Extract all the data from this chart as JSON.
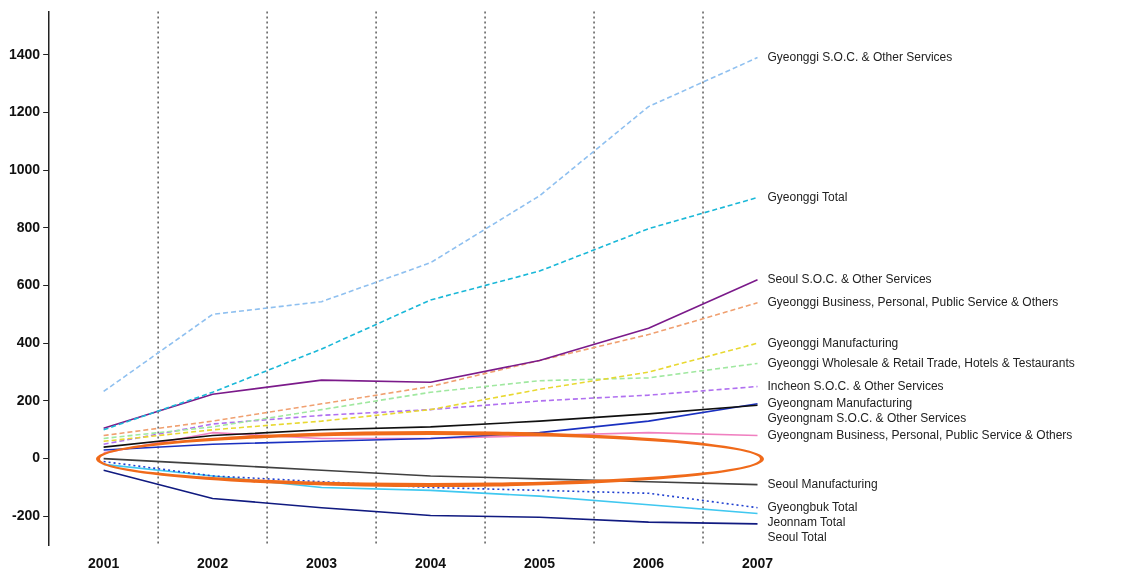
{
  "chart_data": {
    "type": "line",
    "categories": [
      "2001",
      "2002",
      "2003",
      "2004",
      "2005",
      "2006",
      "2007"
    ],
    "ylim": [
      -300,
      1550
    ],
    "yticks": [
      -200,
      0,
      200,
      400,
      600,
      800,
      1000,
      1200,
      1400
    ],
    "grid": "x",
    "legend": false,
    "marker": "none",
    "series": [
      {
        "name": "Gyeonggi S.O.C. & Other Services",
        "color": "#8fc0f0",
        "line_style": "dashed",
        "values": [
          233,
          500,
          544,
          679,
          911,
          1220,
          1390
        ]
      },
      {
        "name": "Gyeonggi Total",
        "color": "#1ab8d8",
        "line_style": "dashed",
        "values": [
          100,
          230,
          380,
          550,
          650,
          797,
          905
        ]
      },
      {
        "name": "Seoul S.O.C. & Other Services",
        "color": "#7b1a8a",
        "line_style": "solid",
        "values": [
          105,
          223,
          272,
          265,
          340,
          452,
          620
        ]
      },
      {
        "name": "Gyeonggi Business, Personal, Public Service & Others",
        "color": "#f0a070",
        "line_style": "dashed",
        "values": [
          80,
          130,
          190,
          250,
          340,
          430,
          540
        ]
      },
      {
        "name": "Gyeonggi Manufacturing",
        "color": "#e8d830",
        "line_style": "dashed",
        "values": [
          60,
          100,
          130,
          170,
          240,
          300,
          400
        ]
      },
      {
        "name": "Gyeonggi Wholesale & Retail Trade, Hotels & Testaurants",
        "color": "#a0e8a0",
        "line_style": "dashed",
        "values": [
          70,
          110,
          170,
          230,
          270,
          280,
          330
        ]
      },
      {
        "name": "Incheon S.O.C. & Other Services",
        "color": "#b070f0",
        "line_style": "dashed",
        "values": [
          50,
          120,
          150,
          170,
          200,
          220,
          250
        ]
      },
      {
        "name": "Gyeongnam S.O.C. & Other Services",
        "color": "#101010",
        "line_style": "solid",
        "values": [
          40,
          80,
          100,
          110,
          130,
          155,
          185
        ]
      },
      {
        "name": "Gyeongnam Manufacturing",
        "color": "#1a30c0",
        "line_style": "solid",
        "values": [
          30,
          50,
          60,
          70,
          90,
          130,
          190
        ]
      },
      {
        "name": "Gyeongnam Business, Personal, Public Service & Others",
        "color": "#f080c0",
        "line_style": "solid",
        "values": [
          20,
          90,
          70,
          70,
          80,
          90,
          80
        ]
      },
      {
        "name": "Seoul Manufacturing",
        "color": "#404040",
        "line_style": "solid",
        "values": [
          0,
          -20,
          -40,
          -60,
          -70,
          -80,
          -90
        ]
      },
      {
        "name": "Gyeongbuk Total",
        "color": "#2040d0",
        "line_style": "dotted",
        "values": [
          -10,
          -60,
          -80,
          -100,
          -110,
          -120,
          -170
        ]
      },
      {
        "name": "Jeonnam Total",
        "color": "#40c8f0",
        "line_style": "solid",
        "values": [
          -20,
          -60,
          -100,
          -110,
          -130,
          -160,
          -190
        ]
      },
      {
        "name": "Seoul Total",
        "color": "#101a80",
        "line_style": "solid",
        "values": [
          -40,
          -138,
          -170,
          -197,
          -203,
          -220,
          -226
        ]
      }
    ]
  }
}
